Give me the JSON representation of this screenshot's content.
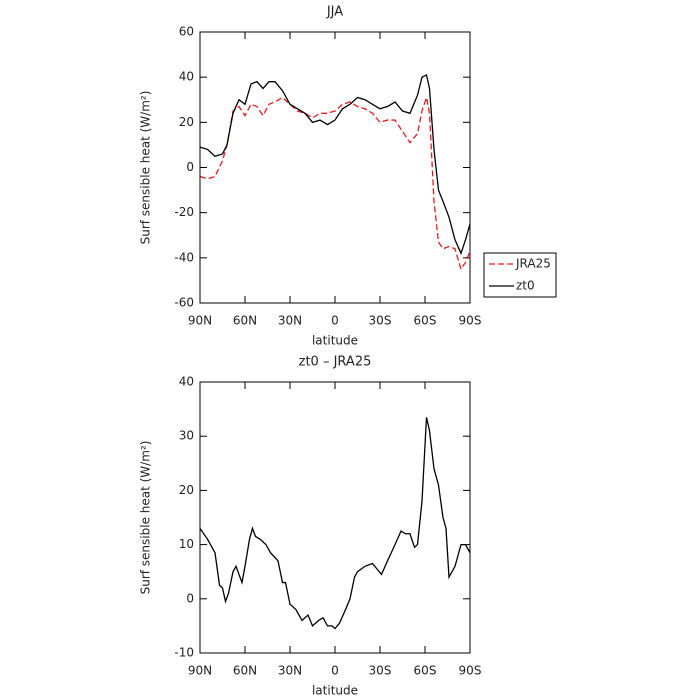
{
  "chart_data": [
    {
      "type": "line",
      "title": "JJA",
      "xlabel": "latitude",
      "ylabel": "Surf sensible heat (W/m²)",
      "x": [
        90,
        85,
        80,
        75,
        72,
        68,
        64,
        60,
        56,
        52,
        48,
        44,
        40,
        35,
        30,
        25,
        20,
        15,
        10,
        5,
        0,
        -5,
        -10,
        -15,
        -20,
        -25,
        -30,
        -35,
        -40,
        -45,
        -50,
        -55,
        -58,
        -61,
        -63,
        -66,
        -69,
        -72,
        -76,
        -80,
        -84,
        -87,
        -90
      ],
      "series": [
        {
          "name": "JRA25",
          "color": "#e8191c",
          "dash": true,
          "values": [
            -4,
            -5,
            -4,
            3,
            10,
            25,
            27,
            23,
            28,
            27,
            23,
            28,
            29,
            31,
            28,
            25,
            24,
            22,
            24,
            24,
            25,
            28,
            29,
            27,
            26,
            24,
            20,
            21,
            21,
            16,
            11,
            15,
            25,
            31,
            24,
            -15,
            -33,
            -36,
            -35,
            -36,
            -45,
            -42,
            -37
          ]
        },
        {
          "name": "zt0",
          "color": "#000000",
          "dash": false,
          "values": [
            9,
            8,
            5,
            6,
            10,
            24,
            30,
            28,
            37,
            38,
            35,
            38,
            38,
            34,
            28,
            26,
            24,
            20,
            21,
            19,
            21,
            26,
            28,
            31,
            30,
            28,
            26,
            27,
            29,
            25,
            24,
            32,
            40,
            41,
            35,
            8,
            -10,
            -15,
            -22,
            -32,
            -38,
            -32,
            -25
          ]
        }
      ],
      "xlim": [
        90,
        -90
      ],
      "xticks": [
        {
          "value": 90,
          "label": "90N"
        },
        {
          "value": 60,
          "label": "60N"
        },
        {
          "value": 30,
          "label": "30N"
        },
        0,
        {
          "value": -30,
          "label": "30S"
        },
        {
          "value": -60,
          "label": "60S"
        },
        {
          "value": -90,
          "label": "90S"
        }
      ],
      "ylim": [
        -60,
        60
      ],
      "yticks": [
        -60,
        -40,
        -20,
        0,
        20,
        40,
        60
      ],
      "legend": "right"
    },
    {
      "type": "line",
      "title": "zt0 – JRA25",
      "xlabel": "latitude",
      "ylabel": "Surf sensible heat (W/m²)",
      "x": [
        90,
        85,
        80,
        77,
        75,
        73,
        71,
        68,
        66,
        62,
        60,
        57,
        55,
        53,
        50,
        46,
        43,
        38,
        35,
        33,
        30,
        26,
        22,
        18,
        15,
        11,
        8,
        5,
        2,
        0,
        -3,
        -7,
        -10,
        -13,
        -15,
        -20,
        -25,
        -28,
        -31,
        -35,
        -40,
        -44,
        -47,
        -50,
        -53,
        -55,
        -58,
        -61,
        -63,
        -66,
        -69,
        -72,
        -74,
        -76,
        -80,
        -84,
        -87,
        -90
      ],
      "series": [
        {
          "name": "zt0 – JRA25",
          "color": "#000000",
          "dash": false,
          "values": [
            13,
            11,
            8.5,
            2.5,
            2,
            -0.5,
            1,
            5,
            6,
            3,
            6,
            11,
            13,
            11.5,
            11,
            10,
            8.5,
            7,
            3,
            3,
            -1,
            -2,
            -4,
            -3,
            -5,
            -4,
            -3.5,
            -5,
            -5,
            -5.5,
            -4.5,
            -2,
            0,
            4,
            5,
            6,
            6.5,
            5.5,
            4.5,
            7,
            10,
            12.5,
            12,
            12,
            9.5,
            10,
            18,
            33.5,
            31,
            24,
            21,
            15,
            13,
            4,
            6,
            10,
            10,
            8.5
          ]
        }
      ],
      "xlim": [
        90,
        -90
      ],
      "xticks": [
        {
          "value": 90,
          "label": "90N"
        },
        {
          "value": 60,
          "label": "60N"
        },
        {
          "value": 30,
          "label": "30N"
        },
        0,
        {
          "value": -30,
          "label": "30S"
        },
        {
          "value": -60,
          "label": "60S"
        },
        {
          "value": -90,
          "label": "90S"
        }
      ],
      "ylim": [
        -10,
        40
      ],
      "yticks": [
        -10,
        0,
        10,
        20,
        30,
        40
      ]
    }
  ]
}
